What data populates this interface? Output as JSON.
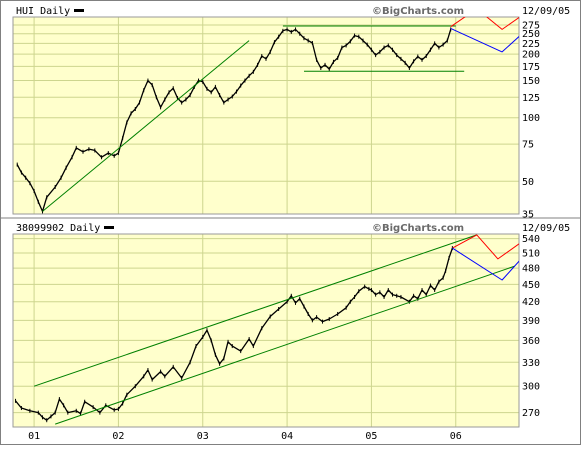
{
  "colors": {
    "background": "#ffffff",
    "plot_fill": "#ffffcc",
    "grid": "#cdd58e",
    "price": "#000000",
    "trendline": "#008000",
    "projection_red": "#ff0000",
    "projection_blue": "#0000ff",
    "watermark": "#6a6a6a"
  },
  "chart_data": [
    {
      "type": "line",
      "panel": "top",
      "title": "HUI Daily",
      "legend_icon": "black-line-swatch",
      "watermark": "©BigCharts.com",
      "date_label": "12/09/05",
      "y_scale": "log",
      "ylim": [
        35,
        300
      ],
      "y_ticks": [
        35,
        50,
        75,
        100,
        125,
        150,
        175,
        200,
        225,
        250,
        275
      ],
      "x_range": [
        2000.75,
        2006.75
      ],
      "x_gridlines": [
        2001,
        2002,
        2003,
        2004,
        2005,
        2006
      ],
      "grid": true,
      "series": [
        {
          "kind": "price",
          "points": [
            [
              2000.8,
              60
            ],
            [
              2000.85,
              55
            ],
            [
              2000.9,
              52
            ],
            [
              2000.95,
              49
            ],
            [
              2001.0,
              45
            ],
            [
              2001.05,
              40
            ],
            [
              2001.1,
              36
            ],
            [
              2001.15,
              42
            ],
            [
              2001.25,
              47
            ],
            [
              2001.32,
              52
            ],
            [
              2001.38,
              58
            ],
            [
              2001.45,
              65
            ],
            [
              2001.5,
              72
            ],
            [
              2001.58,
              69
            ],
            [
              2001.65,
              71
            ],
            [
              2001.72,
              70
            ],
            [
              2001.8,
              65
            ],
            [
              2001.88,
              68
            ],
            [
              2001.95,
              66
            ],
            [
              2002.0,
              68
            ],
            [
              2002.05,
              80
            ],
            [
              2002.1,
              95
            ],
            [
              2002.15,
              105
            ],
            [
              2002.2,
              110
            ],
            [
              2002.25,
              118
            ],
            [
              2002.3,
              135
            ],
            [
              2002.35,
              150
            ],
            [
              2002.4,
              143
            ],
            [
              2002.45,
              125
            ],
            [
              2002.5,
              112
            ],
            [
              2002.55,
              122
            ],
            [
              2002.6,
              132
            ],
            [
              2002.65,
              138
            ],
            [
              2002.7,
              124
            ],
            [
              2002.75,
              118
            ],
            [
              2002.8,
              122
            ],
            [
              2002.85,
              128
            ],
            [
              2002.9,
              140
            ],
            [
              2002.95,
              150
            ],
            [
              2003.0,
              148
            ],
            [
              2003.05,
              137
            ],
            [
              2003.1,
              132
            ],
            [
              2003.15,
              140
            ],
            [
              2003.2,
              128
            ],
            [
              2003.25,
              118
            ],
            [
              2003.3,
              122
            ],
            [
              2003.35,
              126
            ],
            [
              2003.4,
              133
            ],
            [
              2003.45,
              142
            ],
            [
              2003.5,
              150
            ],
            [
              2003.55,
              158
            ],
            [
              2003.6,
              165
            ],
            [
              2003.65,
              178
            ],
            [
              2003.7,
              196
            ],
            [
              2003.75,
              190
            ],
            [
              2003.8,
              205
            ],
            [
              2003.85,
              228
            ],
            [
              2003.9,
              242
            ],
            [
              2003.95,
              258
            ],
            [
              2004.0,
              262
            ],
            [
              2004.05,
              255
            ],
            [
              2004.1,
              262
            ],
            [
              2004.15,
              250
            ],
            [
              2004.2,
              238
            ],
            [
              2004.25,
              232
            ],
            [
              2004.3,
              226
            ],
            [
              2004.35,
              188
            ],
            [
              2004.4,
              172
            ],
            [
              2004.45,
              178
            ],
            [
              2004.5,
              170
            ],
            [
              2004.55,
              184
            ],
            [
              2004.6,
              192
            ],
            [
              2004.65,
              215
            ],
            [
              2004.7,
              220
            ],
            [
              2004.75,
              230
            ],
            [
              2004.8,
              245
            ],
            [
              2004.85,
              242
            ],
            [
              2004.9,
              232
            ],
            [
              2004.95,
              222
            ],
            [
              2005.0,
              210
            ],
            [
              2005.05,
              198
            ],
            [
              2005.1,
              205
            ],
            [
              2005.15,
              215
            ],
            [
              2005.2,
              220
            ],
            [
              2005.25,
              210
            ],
            [
              2005.3,
              198
            ],
            [
              2005.35,
              190
            ],
            [
              2005.4,
              182
            ],
            [
              2005.45,
              172
            ],
            [
              2005.5,
              185
            ],
            [
              2005.55,
              195
            ],
            [
              2005.6,
              188
            ],
            [
              2005.65,
              196
            ],
            [
              2005.7,
              210
            ],
            [
              2005.75,
              225
            ],
            [
              2005.8,
              215
            ],
            [
              2005.85,
              222
            ],
            [
              2005.9,
              232
            ],
            [
              2005.94,
              262
            ]
          ]
        },
        {
          "kind": "trendline",
          "points": [
            [
              2001.1,
              36
            ],
            [
              2003.55,
              232
            ]
          ]
        },
        {
          "kind": "trendline",
          "points": [
            [
              2003.95,
              272
            ],
            [
              2006.0,
              272
            ]
          ]
        },
        {
          "kind": "trendline",
          "points": [
            [
              2004.2,
              166
            ],
            [
              2006.1,
              166
            ]
          ]
        },
        {
          "kind": "projection",
          "color": "red",
          "points": [
            [
              2005.94,
              270
            ],
            [
              2006.25,
              328
            ],
            [
              2006.55,
              262
            ],
            [
              2006.85,
              318
            ]
          ]
        },
        {
          "kind": "projection",
          "color": "blue",
          "points": [
            [
              2005.94,
              265
            ],
            [
              2006.55,
              205
            ],
            [
              2006.9,
              275
            ]
          ]
        }
      ]
    },
    {
      "type": "line",
      "panel": "bottom",
      "title": "38099902 Daily",
      "legend_icon": "black-line-swatch",
      "watermark": "©BigCharts.com",
      "date_label": "12/09/05",
      "y_scale": "log",
      "ylim": [
        255,
        550
      ],
      "y_ticks": [
        270,
        300,
        330,
        360,
        390,
        420,
        450,
        480,
        510,
        540
      ],
      "x_range": [
        2000.75,
        2006.75
      ],
      "x_gridlines": [
        2001,
        2002,
        2003,
        2004,
        2005,
        2006
      ],
      "x_tick_labels": [
        "01",
        "02",
        "03",
        "04",
        "05",
        "06"
      ],
      "grid": true,
      "series": [
        {
          "kind": "price",
          "points": [
            [
              2000.78,
              283
            ],
            [
              2000.85,
              275
            ],
            [
              2000.95,
              272
            ],
            [
              2001.05,
              270
            ],
            [
              2001.1,
              265
            ],
            [
              2001.15,
              262
            ],
            [
              2001.2,
              266
            ],
            [
              2001.25,
              270
            ],
            [
              2001.3,
              285
            ],
            [
              2001.35,
              278
            ],
            [
              2001.4,
              270
            ],
            [
              2001.5,
              272
            ],
            [
              2001.55,
              269
            ],
            [
              2001.6,
              282
            ],
            [
              2001.7,
              276
            ],
            [
              2001.78,
              270
            ],
            [
              2001.85,
              278
            ],
            [
              2001.95,
              273
            ],
            [
              2002.0,
              274
            ],
            [
              2002.05,
              280
            ],
            [
              2002.1,
              290
            ],
            [
              2002.2,
              300
            ],
            [
              2002.3,
              312
            ],
            [
              2002.35,
              320
            ],
            [
              2002.4,
              308
            ],
            [
              2002.5,
              318
            ],
            [
              2002.55,
              312
            ],
            [
              2002.65,
              324
            ],
            [
              2002.75,
              310
            ],
            [
              2002.85,
              330
            ],
            [
              2002.92,
              352
            ],
            [
              2003.0,
              365
            ],
            [
              2003.05,
              375
            ],
            [
              2003.1,
              360
            ],
            [
              2003.15,
              340
            ],
            [
              2003.2,
              328
            ],
            [
              2003.25,
              335
            ],
            [
              2003.3,
              358
            ],
            [
              2003.35,
              352
            ],
            [
              2003.45,
              345
            ],
            [
              2003.55,
              362
            ],
            [
              2003.6,
              352
            ],
            [
              2003.7,
              378
            ],
            [
              2003.8,
              396
            ],
            [
              2003.9,
              408
            ],
            [
              2004.0,
              420
            ],
            [
              2004.05,
              430
            ],
            [
              2004.1,
              418
            ],
            [
              2004.15,
              425
            ],
            [
              2004.2,
              412
            ],
            [
              2004.25,
              400
            ],
            [
              2004.3,
              390
            ],
            [
              2004.35,
              395
            ],
            [
              2004.42,
              388
            ],
            [
              2004.5,
              392
            ],
            [
              2004.6,
              400
            ],
            [
              2004.7,
              410
            ],
            [
              2004.75,
              420
            ],
            [
              2004.8,
              428
            ],
            [
              2004.85,
              438
            ],
            [
              2004.92,
              446
            ],
            [
              2004.97,
              442
            ],
            [
              2005.0,
              440
            ],
            [
              2005.05,
              432
            ],
            [
              2005.1,
              436
            ],
            [
              2005.15,
              428
            ],
            [
              2005.2,
              440
            ],
            [
              2005.25,
              432
            ],
            [
              2005.3,
              430
            ],
            [
              2005.35,
              428
            ],
            [
              2005.45,
              420
            ],
            [
              2005.5,
              430
            ],
            [
              2005.55,
              425
            ],
            [
              2005.6,
              440
            ],
            [
              2005.65,
              432
            ],
            [
              2005.7,
              448
            ],
            [
              2005.75,
              440
            ],
            [
              2005.8,
              455
            ],
            [
              2005.85,
              462
            ],
            [
              2005.88,
              475
            ],
            [
              2005.92,
              500
            ],
            [
              2005.96,
              520
            ]
          ]
        },
        {
          "kind": "trendline",
          "points": [
            [
              2001.0,
              300
            ],
            [
              2006.25,
              548
            ]
          ]
        },
        {
          "kind": "trendline",
          "points": [
            [
              2001.25,
              258
            ],
            [
              2006.7,
              484
            ]
          ]
        },
        {
          "kind": "projection",
          "color": "red",
          "points": [
            [
              2005.96,
              520
            ],
            [
              2006.25,
              548
            ],
            [
              2006.5,
              498
            ],
            [
              2006.8,
              535
            ]
          ]
        },
        {
          "kind": "projection",
          "color": "blue",
          "points": [
            [
              2005.96,
              520
            ],
            [
              2006.55,
              458
            ],
            [
              2006.9,
              522
            ]
          ]
        }
      ]
    }
  ]
}
